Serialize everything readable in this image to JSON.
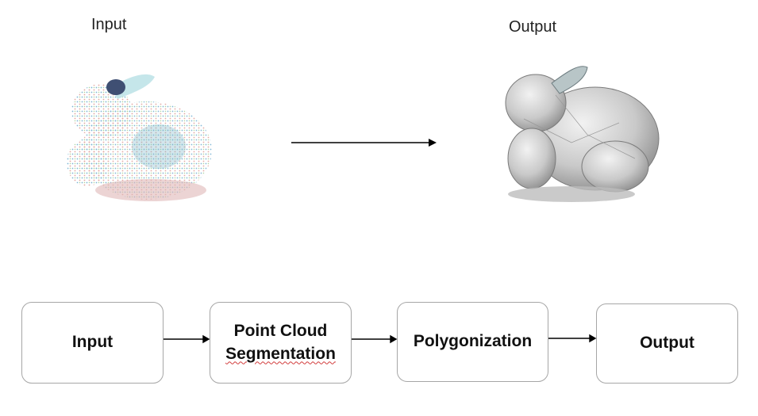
{
  "top": {
    "input_caption": "Input",
    "output_caption": "Output"
  },
  "flow": {
    "steps": [
      {
        "label": "Input"
      },
      {
        "label_line1": "Point Cloud",
        "label_line2": "Segmentation"
      },
      {
        "label": "Polygonization"
      },
      {
        "label": "Output"
      }
    ]
  },
  "colors": {
    "box_border": "#a6a6a6",
    "arrow": "#000000",
    "spellcheck": "#d23b3b"
  }
}
